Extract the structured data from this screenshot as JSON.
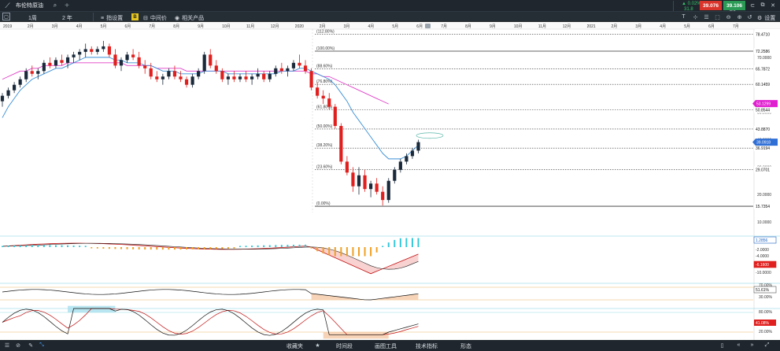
{
  "window": {
    "title": "布伦特原油",
    "price_change_pct": "▲ 0.02%",
    "price_change_pts": "31.8",
    "bid": "39.076",
    "ask": "39.106",
    "spread": "3.0",
    "settings_label": "设置",
    "timeframe": "1周",
    "range": "2 年",
    "indicators_label": "指设置",
    "mid_price_label": "中间价",
    "related_label": "相关产品",
    "badge_b": "B"
  },
  "bottombar": {
    "items": [
      "收藏夹",
      "时间段",
      "画图工具",
      "技术指标",
      "形态"
    ]
  },
  "colors": {
    "up": "#1b2a3b",
    "down": "#e0201e",
    "ma_fast": "#3b8fd6",
    "ma_slow": "#e040c8",
    "macd_hist_pos": "#34c7d9",
    "macd_hist_neg": "#f0a023",
    "rsi_fill": "#f5c9a6",
    "macd_fill": "#f6c6c6",
    "stoch_fill": "#a8e0ee"
  },
  "chart_data": {
    "type": "candlestick",
    "instrument": "布伦特原油",
    "timeframe": "1周",
    "x_ticks": [
      "2019",
      "2月",
      "3月",
      "4月",
      "5月",
      "6月",
      "7月",
      "8月",
      "9月",
      "10月",
      "11月",
      "12月",
      "2020",
      "2月",
      "3月",
      "4月",
      "5月",
      "6月",
      "7月",
      "8月",
      "9月",
      "10月",
      "11月",
      "12月",
      "2021",
      "2月",
      "3月",
      "4月",
      "5月",
      "6月",
      "7月"
    ],
    "y_ticks": [
      {
        "label": "70.0000",
        "v": 70
      },
      {
        "label": "60.0000",
        "v": 60
      },
      {
        "label": "50.0000",
        "v": 50
      },
      {
        "label": "40.0000",
        "v": 40
      },
      {
        "label": "30.0000",
        "v": 30
      },
      {
        "label": "20.0000",
        "v": 20
      },
      {
        "label": "10.0000",
        "v": 10
      }
    ],
    "ylim": [
      6,
      80
    ],
    "fib_levels": [
      {
        "label": "(112.80%)",
        "price": "78.4710",
        "v": 78.471
      },
      {
        "label": "(100.00%)",
        "price": "72.2586",
        "v": 72.2586
      },
      {
        "label": "(88.60%)",
        "price": "65.7872",
        "v": 65.7872
      },
      {
        "label": "(76.80%)",
        "price": "60.1459",
        "v": 60.1459
      },
      {
        "label": "(61.80%)",
        "price": "50.8544",
        "v": 50.8544
      },
      {
        "label": "(50.00%)",
        "price": "43.8870",
        "v": 43.887
      },
      {
        "label": "(38.20%)",
        "price": "36.9194",
        "v": 36.9194
      },
      {
        "label": "(23.60%)",
        "price": "29.0701",
        "v": 29.0701
      },
      {
        "label": "(0.00%)",
        "price": "15.7354",
        "v": 15.7354
      }
    ],
    "price_labels": [
      {
        "text": "53.1299",
        "v": 53.13,
        "color": "#e020d0"
      },
      {
        "text": "39.0918",
        "v": 39.09,
        "color": "#2f6fd6"
      }
    ],
    "candles": [
      [
        54,
        57,
        52,
        56
      ],
      [
        56,
        59,
        55,
        58
      ],
      [
        58,
        61,
        57,
        60
      ],
      [
        60,
        63,
        59,
        62
      ],
      [
        62,
        66,
        61,
        65
      ],
      [
        65,
        67,
        63,
        64
      ],
      [
        64,
        66,
        62,
        65
      ],
      [
        65,
        69,
        64,
        68
      ],
      [
        68,
        70,
        66,
        67
      ],
      [
        67,
        70,
        66,
        69
      ],
      [
        69,
        71,
        67,
        68
      ],
      [
        68,
        71,
        66,
        70
      ],
      [
        70,
        72,
        68,
        71
      ],
      [
        71,
        73,
        69,
        72
      ],
      [
        72,
        75,
        70,
        73
      ],
      [
        73,
        74,
        71,
        72
      ],
      [
        72,
        74,
        71,
        73
      ],
      [
        73,
        76,
        72,
        74
      ],
      [
        74,
        75,
        70,
        71
      ],
      [
        71,
        73,
        66,
        67
      ],
      [
        67,
        70,
        65,
        69
      ],
      [
        69,
        72,
        68,
        71
      ],
      [
        71,
        73,
        69,
        70
      ],
      [
        70,
        72,
        66,
        67
      ],
      [
        67,
        69,
        64,
        66
      ],
      [
        66,
        68,
        62,
        63
      ],
      [
        63,
        65,
        61,
        62
      ],
      [
        62,
        64,
        60,
        63
      ],
      [
        63,
        66,
        62,
        65
      ],
      [
        65,
        67,
        62,
        63
      ],
      [
        63,
        65,
        61,
        62
      ],
      [
        62,
        63,
        59,
        60
      ],
      [
        60,
        64,
        59,
        63
      ],
      [
        63,
        66,
        62,
        65
      ],
      [
        65,
        72,
        64,
        71
      ],
      [
        71,
        73,
        66,
        67
      ],
      [
        67,
        69,
        64,
        65
      ],
      [
        65,
        66,
        61,
        62
      ],
      [
        62,
        64,
        60,
        63
      ],
      [
        63,
        65,
        61,
        62
      ],
      [
        62,
        64,
        61,
        63
      ],
      [
        63,
        65,
        61,
        62
      ],
      [
        62,
        64,
        60,
        63
      ],
      [
        63,
        66,
        62,
        64
      ],
      [
        64,
        65,
        61,
        62
      ],
      [
        62,
        65,
        61,
        64
      ],
      [
        64,
        67,
        63,
        66
      ],
      [
        66,
        68,
        64,
        65
      ],
      [
        65,
        67,
        63,
        66
      ],
      [
        66,
        69,
        65,
        68
      ],
      [
        68,
        71,
        66,
        67
      ],
      [
        67,
        69,
        64,
        65
      ],
      [
        65,
        66,
        58,
        59
      ],
      [
        59,
        61,
        55,
        56
      ],
      [
        56,
        58,
        53,
        55
      ],
      [
        55,
        57,
        51,
        52
      ],
      [
        52,
        53,
        44,
        45
      ],
      [
        45,
        46,
        31,
        32
      ],
      [
        32,
        34,
        27,
        28
      ],
      [
        28,
        30,
        21,
        23
      ],
      [
        23,
        30,
        20,
        27
      ],
      [
        27,
        29,
        21,
        22
      ],
      [
        22,
        25,
        19,
        24
      ],
      [
        24,
        26,
        20,
        21
      ],
      [
        21,
        23,
        16,
        18
      ],
      [
        18,
        26,
        17,
        25
      ],
      [
        25,
        30,
        24,
        29
      ],
      [
        29,
        33,
        28,
        32
      ],
      [
        32,
        35,
        31,
        34
      ],
      [
        34,
        37,
        33,
        36
      ],
      [
        36,
        40,
        35,
        39.1
      ]
    ],
    "ma_fast": [
      48,
      52,
      55,
      58,
      60,
      62,
      63,
      64,
      65,
      66,
      66,
      67,
      68,
      69,
      70,
      70,
      70,
      70,
      70,
      69,
      69,
      68,
      68,
      68,
      67,
      67,
      66,
      65,
      65,
      65,
      64,
      64,
      64,
      64,
      65,
      65,
      65,
      65,
      64,
      64,
      64,
      64,
      64,
      64,
      64,
      64,
      64,
      65,
      65,
      65,
      66,
      66,
      65,
      64,
      63,
      62,
      60,
      57,
      54,
      50,
      47,
      44,
      41,
      38,
      35,
      33,
      33,
      33,
      34,
      36,
      38
    ],
    "ma_slow": [
      62,
      63,
      64,
      65,
      65,
      66,
      66,
      67,
      67,
      67,
      67,
      68,
      68,
      68,
      68,
      68,
      68,
      68,
      68,
      68,
      68,
      67,
      67,
      67,
      67,
      67,
      66,
      66,
      66,
      66,
      66,
      65,
      65,
      65,
      65,
      65,
      65,
      65,
      65,
      65,
      65,
      65,
      65,
      65,
      65,
      65,
      65,
      65,
      65,
      65,
      65,
      65,
      64,
      64,
      63,
      63,
      62,
      61,
      60,
      59,
      58,
      57,
      56,
      55,
      54,
      53
    ],
    "panels": [
      {
        "name": "MACD",
        "labels": [
          {
            "text": "1.2856",
            "bg": "#ffffff",
            "fg": "#1a60c0",
            "border": "#1a60c0"
          },
          {
            "text": "-2.0000"
          },
          {
            "text": "-4.0000"
          },
          {
            "text": "-6.1600",
            "bg": "#e0201e",
            "fg": "#fff"
          },
          {
            "text": "-10.0000"
          }
        ]
      },
      {
        "name": "RSI",
        "labels": [
          {
            "text": "70.00%"
          },
          {
            "text": "51.61%",
            "bg": "#ffffff",
            "fg": "#111",
            "border": "#555"
          },
          {
            "text": "30.00%"
          }
        ]
      },
      {
        "name": "Stochastic",
        "labels": [
          {
            "text": "80.00%"
          },
          {
            "text": "41.08%",
            "bg": "#e0201e",
            "fg": "#fff"
          },
          {
            "text": "20.00%"
          }
        ]
      }
    ]
  }
}
